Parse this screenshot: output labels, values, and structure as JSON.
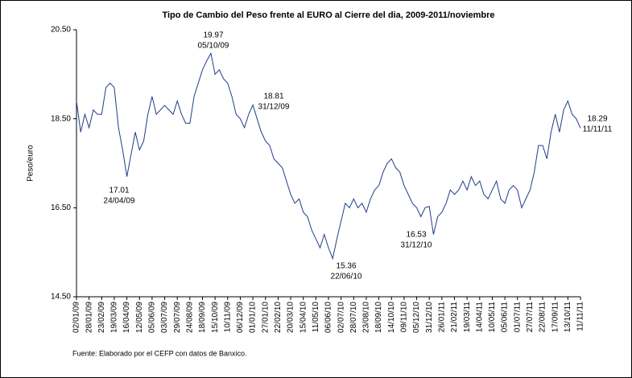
{
  "chart_data": {
    "type": "line",
    "title": "Tipo de Cambio del Peso frente al EURO al Cierre del dia, 2009-2011/noviembre",
    "y_label": "Peso/euro",
    "source": "Fuente: Elaborado por el CEFP con datos de Banxico.",
    "categories": [
      "02/01/09",
      null,
      null,
      "28/01/09",
      null,
      null,
      "23/02/09",
      null,
      null,
      "19/03/09",
      null,
      null,
      "16/04/09",
      null,
      null,
      "12/05/09",
      null,
      null,
      "05/06/09",
      null,
      null,
      "03/07/09",
      null,
      null,
      "29/07/09",
      null,
      null,
      "24/08/09",
      null,
      null,
      "18/09/09",
      null,
      null,
      "15/10/09",
      null,
      null,
      "10/11/09",
      null,
      null,
      "06/12/09",
      null,
      null,
      "01/01/10",
      null,
      null,
      "27/01/10",
      null,
      null,
      "22/02/10",
      null,
      null,
      "20/03/10",
      null,
      null,
      "15/04/10",
      null,
      null,
      "11/05/10",
      null,
      null,
      "06/06/10",
      null,
      null,
      "02/07/10",
      null,
      null,
      "28/07/10",
      null,
      null,
      "23/08/10",
      null,
      null,
      "18/09/10",
      null,
      null,
      "14/10/10",
      null,
      null,
      "09/11/10",
      null,
      null,
      "05/12/10",
      null,
      null,
      "31/12/10",
      null,
      null,
      "26/01/11",
      null,
      null,
      "21/02/11",
      null,
      null,
      "19/03/11",
      null,
      null,
      "14/04/11",
      null,
      null,
      "10/05/11",
      null,
      null,
      "05/06/11",
      null,
      null,
      "01/07/11",
      null,
      null,
      "27/07/11",
      null,
      null,
      "22/08/11",
      null,
      null,
      "17/09/11",
      null,
      null,
      "13/10/11",
      null,
      null,
      "11/11/11"
    ],
    "series": [
      {
        "name": "Peso/euro",
        "color": "#1f3c88",
        "values": [
          18.9,
          18.2,
          18.6,
          18.3,
          18.7,
          18.6,
          18.6,
          19.2,
          19.3,
          19.2,
          18.3,
          17.8,
          17.2,
          17.7,
          18.2,
          17.8,
          18.0,
          18.6,
          19.0,
          18.6,
          18.7,
          18.8,
          18.7,
          18.6,
          18.9,
          18.6,
          18.4,
          18.4,
          19.0,
          19.3,
          19.6,
          19.8,
          19.97,
          19.5,
          19.6,
          19.4,
          19.3,
          19.0,
          18.6,
          18.5,
          18.3,
          18.6,
          18.81,
          18.5,
          18.2,
          18.0,
          17.9,
          17.6,
          17.5,
          17.4,
          17.1,
          16.8,
          16.6,
          16.7,
          16.4,
          16.3,
          16.0,
          15.8,
          15.6,
          15.9,
          15.6,
          15.36,
          15.8,
          16.2,
          16.6,
          16.5,
          16.7,
          16.5,
          16.6,
          16.4,
          16.7,
          16.9,
          17.0,
          17.3,
          17.5,
          17.6,
          17.4,
          17.3,
          17.0,
          16.8,
          16.6,
          16.5,
          16.3,
          16.5,
          16.53,
          15.9,
          16.3,
          16.4,
          16.6,
          16.9,
          16.8,
          16.9,
          17.1,
          16.9,
          17.2,
          17.0,
          17.1,
          16.8,
          16.7,
          16.9,
          17.1,
          16.7,
          16.6,
          16.9,
          17.0,
          16.9,
          16.5,
          16.7,
          16.9,
          17.3,
          17.9,
          17.9,
          17.6,
          18.2,
          18.6,
          18.2,
          18.7,
          18.9,
          18.6,
          18.5,
          18.29
        ]
      }
    ],
    "ylim": [
      14.5,
      20.5
    ],
    "yticks": [
      {
        "value": 14.5,
        "label": "14.50"
      },
      {
        "value": 16.5,
        "label": "16.50"
      },
      {
        "value": 18.5,
        "label": "18.50"
      },
      {
        "value": 20.5,
        "label": "20.50"
      }
    ],
    "annotations": [
      {
        "value": "19.97",
        "date": "05/10/09"
      },
      {
        "value": "18.81",
        "date": "31/12/09"
      },
      {
        "value": "17.01",
        "date": "24/04/09"
      },
      {
        "value": "15.36",
        "date": "22/06/10"
      },
      {
        "value": "16.53",
        "date": "31/12/10"
      },
      {
        "value": "18.29",
        "date": "11/11/11"
      }
    ]
  }
}
